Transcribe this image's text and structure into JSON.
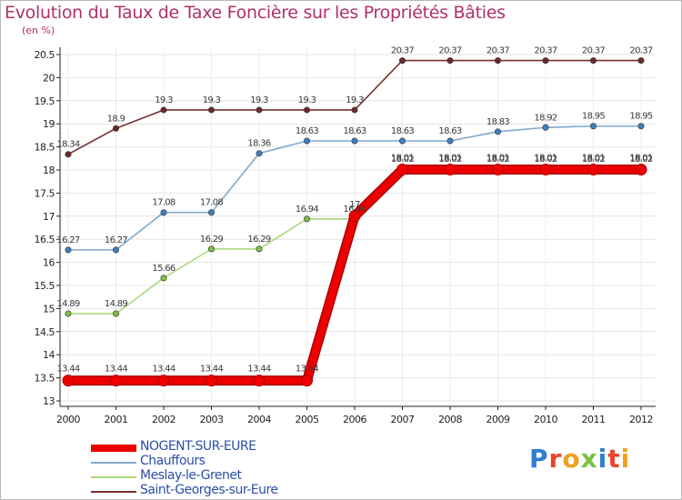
{
  "title": "Evolution du Taux de Taxe Foncière sur les Propriétés Bâties",
  "unit": "(en %)",
  "logo": {
    "text": "Proxiti",
    "letters": [
      {
        "char": "P",
        "color": "#2f7fd0"
      },
      {
        "char": "r",
        "color": "#e8452c"
      },
      {
        "char": "o",
        "color": "#f0a020"
      },
      {
        "char": "x",
        "color": "#7ac143"
      },
      {
        "char": "i",
        "color": "#2f7fd0"
      },
      {
        "char": "t",
        "color": "#e8452c"
      },
      {
        "char": "i",
        "color": "#f0a020"
      }
    ]
  },
  "chart_data": {
    "type": "line",
    "title": "Evolution du Taux de Taxe Foncière sur les Propriétés Bâties",
    "ylabel": "(en %)",
    "xlabel": "",
    "categories": [
      "2000",
      "2001",
      "2002",
      "2003",
      "2004",
      "2005",
      "2006",
      "2007",
      "2008",
      "2009",
      "2010",
      "2011",
      "2012"
    ],
    "ylim": [
      13,
      20.5
    ],
    "yticks": [
      13,
      13.5,
      14,
      14.5,
      15,
      15.5,
      16,
      16.5,
      17,
      17.5,
      18,
      18.5,
      19,
      19.5,
      20,
      20.5
    ],
    "legend_position": "bottom-left",
    "series": [
      {
        "name": "Saint-Georges-sur-Eure",
        "color": "#7a3030",
        "marker": "#6b2a2a",
        "values": [
          18.34,
          18.9,
          19.3,
          19.3,
          19.3,
          19.3,
          19.3,
          20.37,
          20.37,
          20.37,
          20.37,
          20.37,
          20.37
        ],
        "labels": [
          "18.34",
          "18.9",
          "19.3",
          "19.3",
          "19.3",
          "19.3",
          "19.3",
          "20.37",
          "20.37",
          "20.37",
          "20.37",
          "20.37",
          "20.37"
        ]
      },
      {
        "name": "Chauffours",
        "color": "#7fa8cc",
        "marker": "#3f7fbf",
        "values": [
          16.27,
          16.27,
          17.08,
          17.08,
          18.36,
          18.63,
          18.63,
          18.63,
          18.63,
          18.83,
          18.92,
          18.95,
          18.95
        ],
        "labels": [
          "16.27",
          "16.27",
          "17.08",
          "17.08",
          "18.36",
          "18.63",
          "18.63",
          "18.63",
          "18.63",
          "18.83",
          "18.92",
          "18.95",
          "18.95"
        ]
      },
      {
        "name": "Meslay-le-Grenet",
        "color": "#a8d878",
        "marker": "#7cc142",
        "values": [
          14.89,
          14.89,
          15.66,
          16.29,
          16.29,
          16.94,
          16.94,
          18.02,
          18.02,
          18.02,
          18.02,
          18.02,
          18.02
        ],
        "labels": [
          "14.89",
          "14.89",
          "15.66",
          "16.29",
          "16.29",
          "16.94",
          "16.94",
          "18.02",
          "18.02",
          "18.02",
          "18.02",
          "18.02",
          "18.02"
        ]
      },
      {
        "name": "NOGENT-SUR-EURE",
        "color": "#ee0000",
        "marker": "#ee0000",
        "values": [
          13.44,
          13.44,
          13.44,
          13.44,
          13.44,
          13.44,
          17,
          18.01,
          18.01,
          18.01,
          18.01,
          18.01,
          18.01
        ],
        "labels": [
          "13.44",
          "13.44",
          "13.44",
          "13.44",
          "13.44",
          "13.44",
          "17",
          "18.01",
          "18.01",
          "18.01",
          "18.01",
          "18.01",
          "18.01"
        ]
      }
    ],
    "legend": [
      {
        "name": "NOGENT-SUR-EURE",
        "color": "#ee0000",
        "thickness": "heavy"
      },
      {
        "name": "Chauffours",
        "color": "#7fa8cc",
        "thickness": "light"
      },
      {
        "name": "Meslay-le-Grenet",
        "color": "#a8d878",
        "thickness": "light"
      },
      {
        "name": "Saint-Georges-sur-Eure",
        "color": "#7a3030",
        "thickness": "light"
      }
    ]
  }
}
